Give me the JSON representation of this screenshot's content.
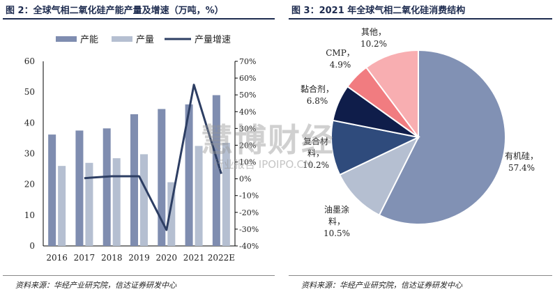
{
  "left": {
    "title": "图 2：全球气相二氧化硅产能产量及增速（万吨，%）",
    "source": "资料来源：华经产业研究院，信达证券研发中心"
  },
  "right": {
    "title": "图 3：2021 年全球气相二氧化硅消费结构",
    "source": "资料来源：华经产业研究院，信达证券研发中心"
  },
  "watermark": {
    "main": "慧博财经",
    "sub": "行业报告 IPOIPO.CN"
  },
  "chart_data": [
    {
      "type": "bar",
      "title": "图 2：全球气相二氧化硅产能产量及增速（万吨，%）",
      "categories": [
        "2016",
        "2017",
        "2018",
        "2019",
        "2020",
        "2021",
        "2022E"
      ],
      "series": [
        {
          "name": "产能",
          "kind": "bar",
          "axis": "left",
          "color": "#7f8db0",
          "values": [
            36.2,
            37.5,
            38.2,
            42.8,
            44.5,
            46.0,
            49.0
          ]
        },
        {
          "name": "产量",
          "kind": "bar",
          "axis": "left",
          "color": "#b5bfd1",
          "values": [
            26.0,
            27.0,
            28.5,
            29.8,
            20.7,
            32.5,
            33.5
          ]
        },
        {
          "name": "产量增速",
          "kind": "line",
          "axis": "right",
          "color": "#2d3e63",
          "values": [
            null,
            0.4,
            1.5,
            1.5,
            -30.5,
            56.0,
            3.0
          ]
        }
      ],
      "legend": "top",
      "ylim_left": [
        0,
        60
      ],
      "yticks_left": [
        "0",
        "10",
        "20",
        "30",
        "40",
        "50",
        "60"
      ],
      "ylim_right": [
        -40,
        70
      ],
      "yticks_right": [
        "-40%",
        "-30%",
        "-20%",
        "-10%",
        "0%",
        "10%",
        "20%",
        "30%",
        "40%",
        "50%",
        "60%",
        "70%"
      ],
      "grid": false
    },
    {
      "type": "pie",
      "title": "图 3：2021 年全球气相二氧化硅消费结构",
      "slices": [
        {
          "label": "有机硅，",
          "value": 57.4,
          "pct": "57.4%",
          "color": "#8191b4"
        },
        {
          "label": "油墨涂料，",
          "value": 10.5,
          "pct": "10.5%",
          "color": "#b5bfd1"
        },
        {
          "label": "复合材料，",
          "value": 10.2,
          "pct": "10.2%",
          "color": "#2f4b7c"
        },
        {
          "label": "黏合剂，",
          "value": 6.8,
          "pct": "6.8%",
          "color": "#0f1d4a"
        },
        {
          "label": "CMP，",
          "value": 4.9,
          "pct": "4.9%",
          "color": "#f17c80"
        },
        {
          "label": "其他，",
          "value": 10.2,
          "pct": "10.2%",
          "color": "#f8aeb1"
        }
      ]
    }
  ]
}
